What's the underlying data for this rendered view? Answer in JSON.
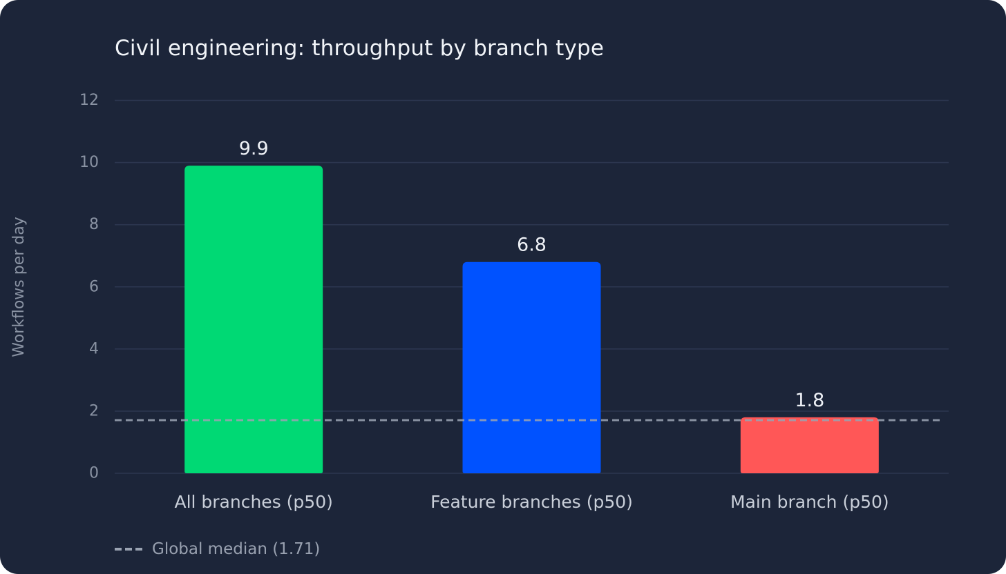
{
  "chart_data": {
    "type": "bar",
    "title": "Civil engineering: throughput by branch type",
    "xlabel": "",
    "ylabel": "Workflows per day",
    "categories": [
      "All branches (p50)",
      "Feature branches (p50)",
      "Main branch (p50)"
    ],
    "values": [
      9.9,
      6.8,
      1.8
    ],
    "value_labels": [
      "9.9",
      "6.8",
      "1.8"
    ],
    "colors": [
      "#00d974",
      "#0052ff",
      "#ff5757"
    ],
    "ylim": [
      0,
      12
    ],
    "yticks": [
      0,
      2,
      4,
      6,
      8,
      10,
      12
    ],
    "grid": true,
    "reference_line": {
      "value": 1.71,
      "label": "Global median (1.71)",
      "style": "dashed",
      "color": "#9aa3b2"
    },
    "legend_position": "bottom-left"
  },
  "colors": {
    "background": "#1c2539",
    "gridline": "#2c3650",
    "tick_text": "#8a93a3",
    "category_text": "#c9cfd9",
    "value_text": "#eef1f6",
    "title_text": "#f1f4f8"
  }
}
